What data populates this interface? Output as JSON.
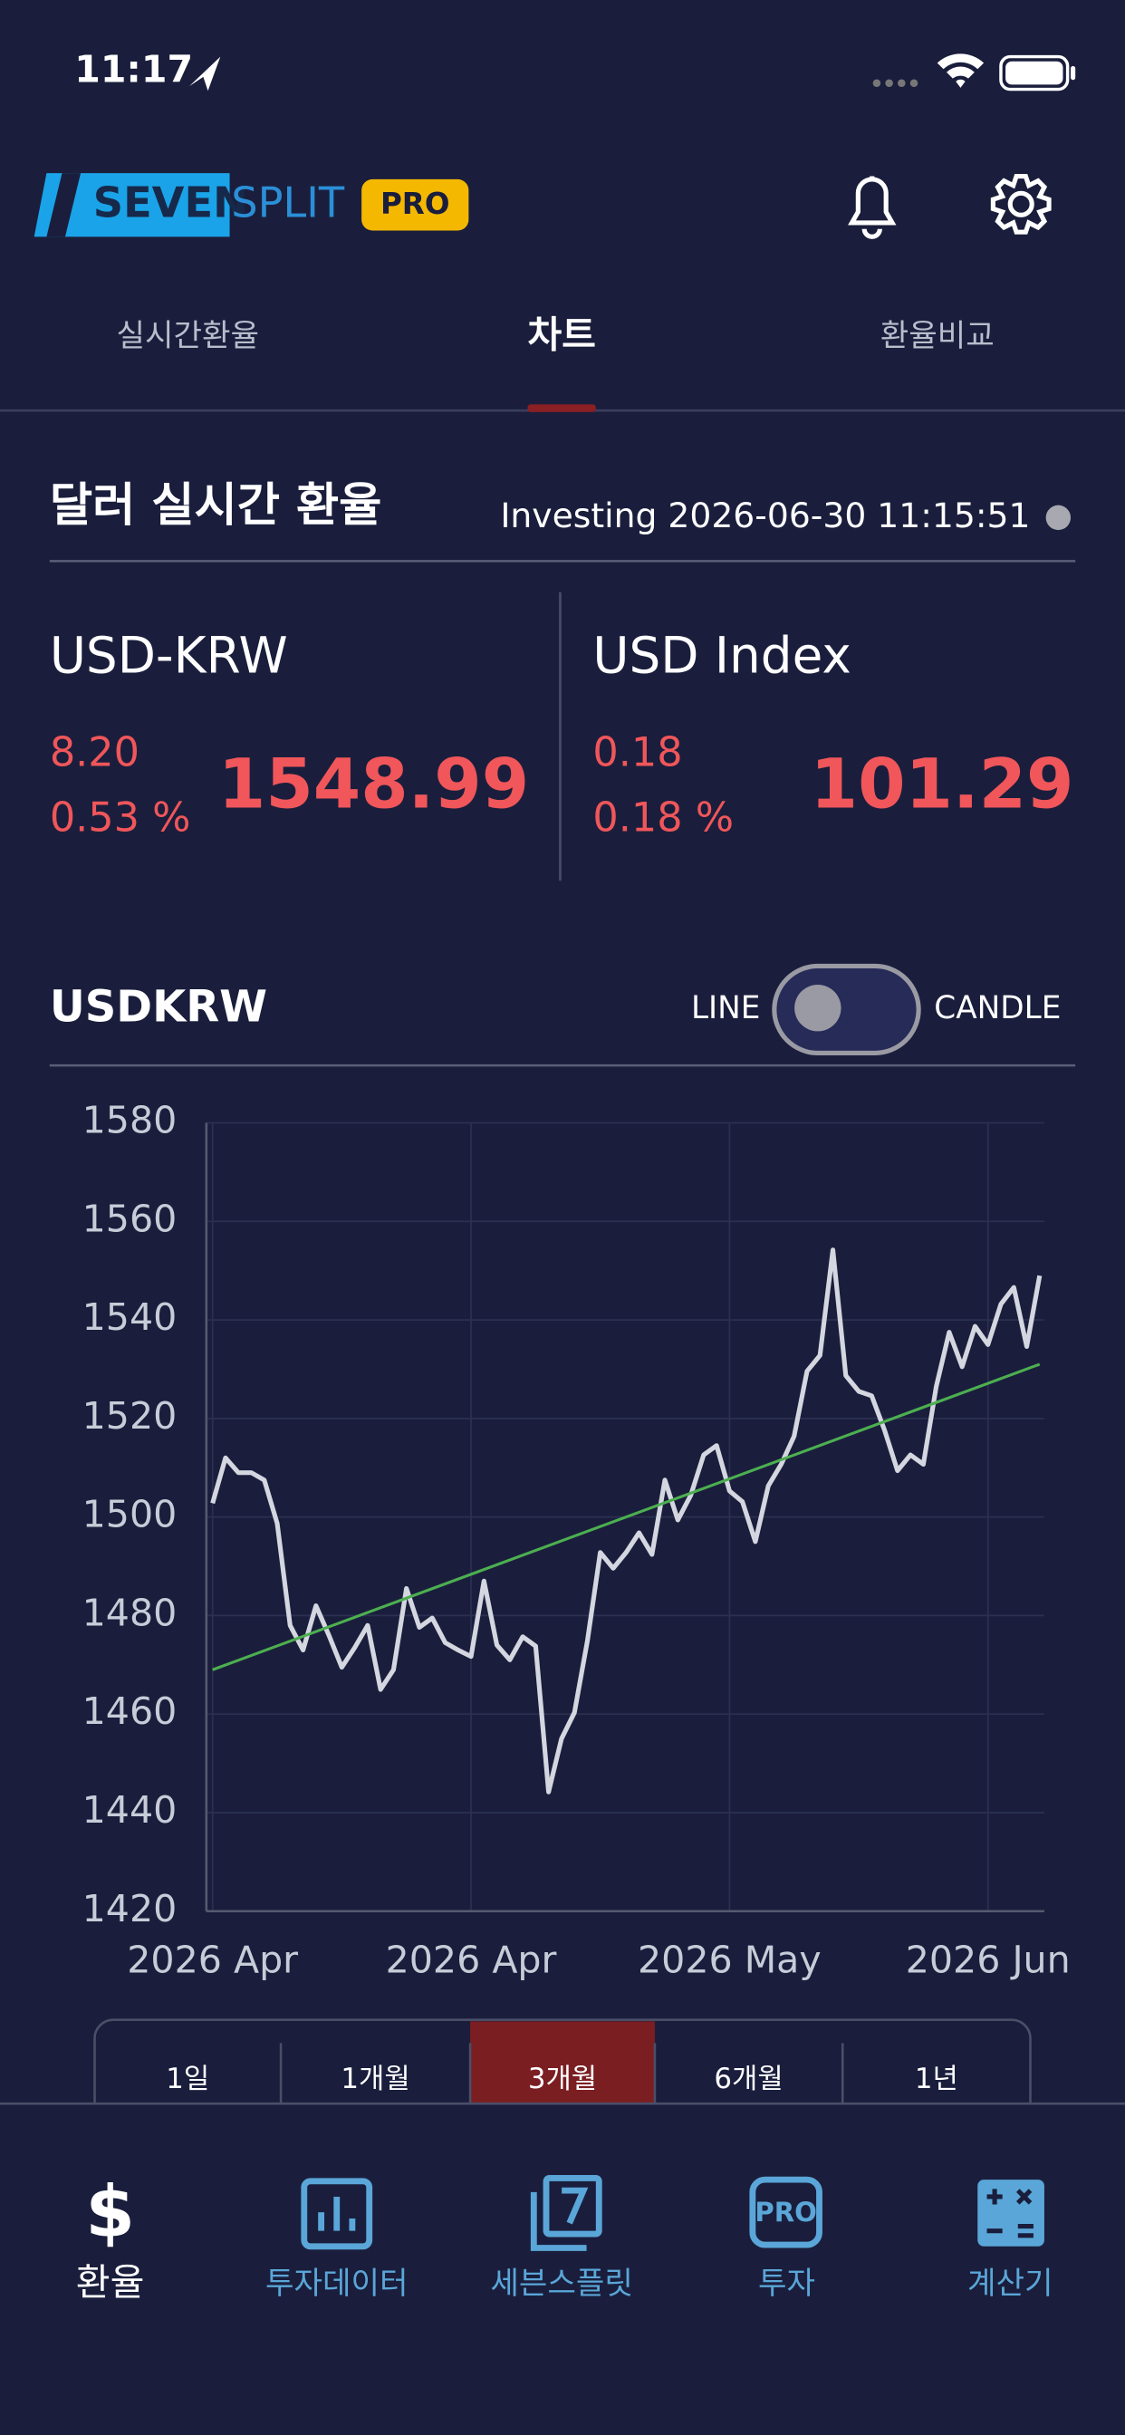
{
  "status": {
    "time": "11:17"
  },
  "header": {
    "logo_left": "SEVEN",
    "logo_right": "SPLIT",
    "badge": "PRO"
  },
  "tabs": {
    "items": [
      "실시간환율",
      "차트",
      "환율비교"
    ],
    "active": 1
  },
  "panel": {
    "title": "달러 실시간 환율",
    "source": "Investing 2026-06-30 11:15:51"
  },
  "quotes": [
    {
      "name": "USD-KRW",
      "change": "8.20",
      "change_pct": "0.53 %",
      "price": "1548.99"
    },
    {
      "name": "USD Index",
      "change": "0.18",
      "change_pct": "0.18 %",
      "price": "101.29"
    }
  ],
  "chart_header": {
    "symbol": "USDKRW",
    "toggle_left": "LINE",
    "toggle_right": "CANDLE"
  },
  "chart_data": {
    "type": "line",
    "categories": [
      "2026 Apr",
      null,
      null,
      null,
      null,
      null,
      null,
      null,
      null,
      null,
      null,
      null,
      null,
      null,
      null,
      null,
      null,
      null,
      null,
      null,
      "2026 Apr",
      null,
      null,
      null,
      null,
      null,
      null,
      null,
      null,
      null,
      null,
      null,
      null,
      null,
      null,
      null,
      null,
      null,
      null,
      null,
      "2026 May",
      null,
      null,
      null,
      null,
      null,
      null,
      null,
      null,
      null,
      null,
      null,
      null,
      null,
      null,
      null,
      null,
      null,
      null,
      null,
      "2026 Jun",
      null,
      null,
      null,
      null
    ],
    "series": [
      {
        "color": "#d4d6e0",
        "values": [
          1502.8,
          1512,
          1509,
          1509,
          1507.5,
          1498.7,
          1478,
          1473,
          1482,
          1476,
          1469.5,
          1473.5,
          1478,
          1465,
          1469,
          1485.5,
          1477.6,
          1479.5,
          1474.5,
          1473,
          1471.7,
          1487,
          1474,
          1471,
          1475.7,
          1473.8,
          1444.2,
          1455,
          1460.3,
          1474.8,
          1492.8,
          1489.6,
          1492.8,
          1496.8,
          1492.4,
          1507.5,
          1499.4,
          1504.4,
          1512.6,
          1514.5,
          1505.3,
          1503.1,
          1495,
          1506.3,
          1510.7,
          1516.4,
          1529.6,
          1532.8,
          1554.2,
          1528.7,
          1525.5,
          1524.6,
          1517.6,
          1509.4,
          1512.6,
          1510.7,
          1526.5,
          1537.5,
          1530.5,
          1538.7,
          1535,
          1543.2,
          1546.6,
          1534.6,
          1548.99
        ]
      }
    ],
    "trendline": {
      "color": "#4caf50",
      "x": [
        0,
        64
      ],
      "values": [
        1469,
        1531
      ]
    },
    "ylim": [
      1420,
      1580
    ],
    "yticks": [
      1420,
      1440,
      1460,
      1480,
      1500,
      1520,
      1540,
      1560,
      1580
    ],
    "grid": true
  },
  "periods": {
    "items": [
      "1일",
      "1개월",
      "3개월",
      "6개월",
      "1년"
    ],
    "active": 2
  },
  "nav": {
    "items": [
      "환율",
      "투자데이터",
      "세븐스플릿",
      "투자",
      "계산기"
    ],
    "active": 0
  }
}
